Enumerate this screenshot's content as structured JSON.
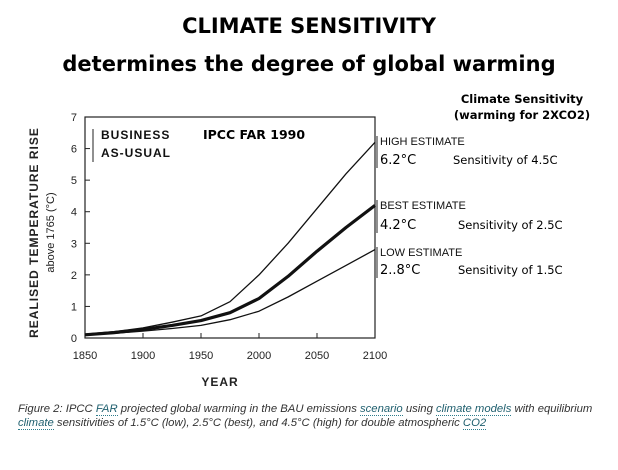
{
  "header": {
    "title_line1": "CLIMATE SENSITIVITY",
    "title_line2": "determines the degree of global warming",
    "sensitivity_heading_line1": "Climate Sensitivity",
    "sensitivity_heading_line2": "(warming for 2XCO2)"
  },
  "chart_data": {
    "type": "line",
    "xlabel": "YEAR",
    "ylabel": "REALISED TEMPERATURE RISE",
    "ylabel_sub": "above 1765 (°C)",
    "xlim": [
      1850,
      2100
    ],
    "ylim": [
      0,
      7
    ],
    "x_ticks": [
      "1850",
      "1900",
      "1950",
      "2000",
      "2050",
      "2100"
    ],
    "y_ticks": [
      "0",
      "1",
      "2",
      "3",
      "4",
      "5",
      "6",
      "7"
    ],
    "annotation_scenario_line1": "BUSINESS",
    "annotation_scenario_line2": "AS-USUAL",
    "annotation_source": "IPCC FAR 1990",
    "x": [
      1850,
      1875,
      1900,
      1925,
      1950,
      1975,
      2000,
      2025,
      2050,
      2075,
      2100
    ],
    "series": [
      {
        "estimate": "HIGH ESTIMATE",
        "end_label": "6.2°C",
        "sensitivity": "Sensitivity of 4.5C",
        "values": [
          0.12,
          0.2,
          0.32,
          0.5,
          0.7,
          1.15,
          2.0,
          3.0,
          4.1,
          5.2,
          6.2
        ],
        "bold": false
      },
      {
        "estimate": "BEST ESTIMATE",
        "end_label": "4.2°C",
        "sensitivity": "Sensitivity of 2.5C",
        "values": [
          0.1,
          0.17,
          0.27,
          0.4,
          0.55,
          0.8,
          1.25,
          1.95,
          2.75,
          3.5,
          4.2
        ],
        "bold": true
      },
      {
        "estimate": "LOW ESTIMATE",
        "end_label": "2..8°C",
        "sensitivity": "Sensitivity of 1.5C",
        "values": [
          0.1,
          0.15,
          0.22,
          0.3,
          0.4,
          0.58,
          0.85,
          1.3,
          1.8,
          2.3,
          2.8
        ],
        "bold": false
      }
    ]
  },
  "caption": {
    "t1": "Figure 2: IPCC ",
    "l1": "FAR",
    "t2": " projected global warming in the BAU emissions ",
    "l2": "scenario",
    "t3": " using ",
    "l3": "climate models",
    "t4": " with equilibrium ",
    "l4": "climate",
    "t5": " sensitivities of 1.5°C (low), 2.5°C (best), and 4.5°C (high) for double atmospheric ",
    "l5": "CO2"
  }
}
